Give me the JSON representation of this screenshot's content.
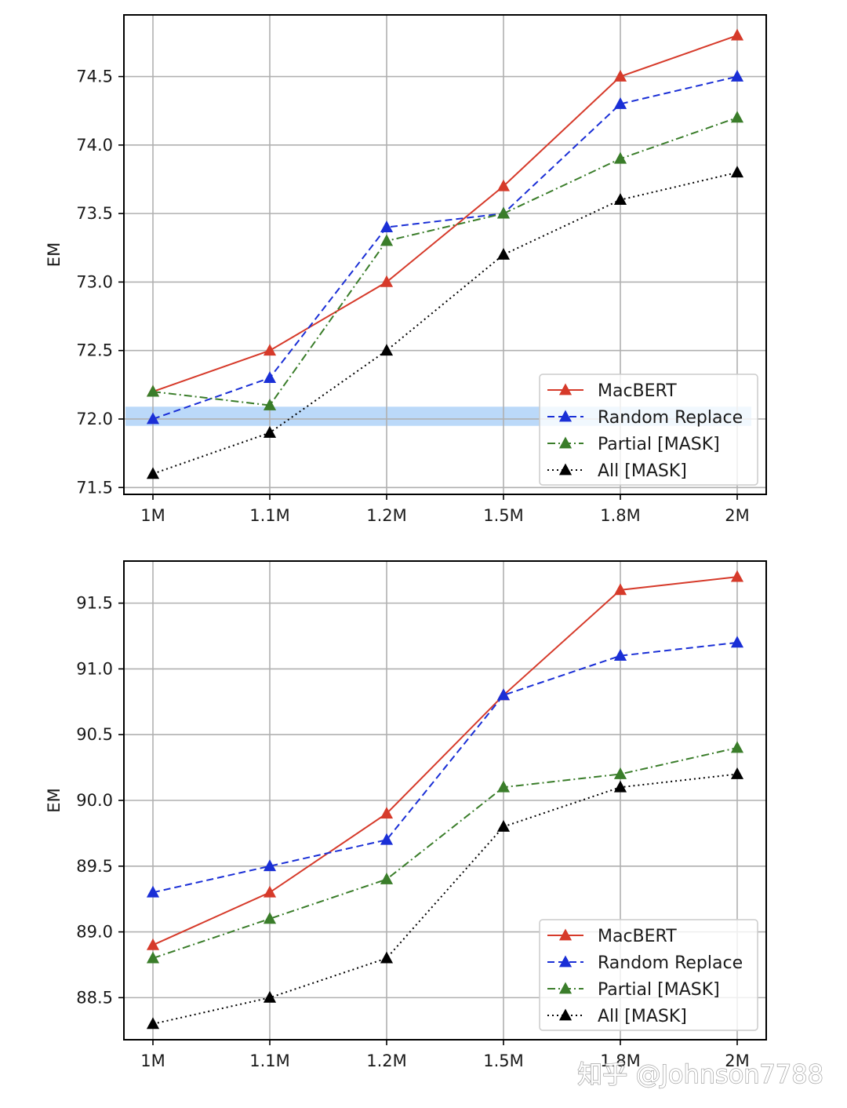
{
  "watermark": "知乎 @Johnson7788",
  "chart_data": [
    {
      "type": "line",
      "title": "",
      "xlabel": "",
      "ylabel": "EM",
      "categories": [
        "1M",
        "1.1M",
        "1.2M",
        "1.5M",
        "1.8M",
        "2M"
      ],
      "ylim": [
        71.45,
        74.95
      ],
      "yticks": [
        71.5,
        72.0,
        72.5,
        73.0,
        73.5,
        74.0,
        74.5
      ],
      "grid": true,
      "legend_position": "lower-right",
      "highlight_band": {
        "from": 71.95,
        "to": 72.09,
        "color": "#8ec0f5"
      },
      "series": [
        {
          "name": "MacBERT",
          "color": "#d63a2a",
          "dash": "solid",
          "values": [
            72.2,
            72.5,
            73.0,
            73.7,
            74.5,
            74.8
          ]
        },
        {
          "name": "Random Replace",
          "color": "#1a2fd6",
          "dash": "dashed",
          "values": [
            72.0,
            72.3,
            73.4,
            73.5,
            74.3,
            74.5
          ]
        },
        {
          "name": "Partial [MASK]",
          "color": "#3a7d2a",
          "dash": "dashdot",
          "values": [
            72.2,
            72.1,
            73.3,
            73.5,
            73.9,
            74.2
          ]
        },
        {
          "name": "All [MASK]",
          "color": "#000000",
          "dash": "dotted",
          "values": [
            71.6,
            71.9,
            72.5,
            73.2,
            73.6,
            73.8
          ]
        }
      ]
    },
    {
      "type": "line",
      "title": "",
      "xlabel": "",
      "ylabel": "EM",
      "categories": [
        "1M",
        "1.1M",
        "1.2M",
        "1.5M",
        "1.8M",
        "2M"
      ],
      "ylim": [
        88.18,
        91.82
      ],
      "yticks": [
        88.5,
        89.0,
        89.5,
        90.0,
        90.5,
        91.0,
        91.5
      ],
      "grid": true,
      "legend_position": "lower-right",
      "series": [
        {
          "name": "MacBERT",
          "color": "#d63a2a",
          "dash": "solid",
          "values": [
            88.9,
            89.3,
            89.9,
            90.8,
            91.6,
            91.7
          ]
        },
        {
          "name": "Random Replace",
          "color": "#1a2fd6",
          "dash": "dashed",
          "values": [
            89.3,
            89.5,
            89.7,
            90.8,
            91.1,
            91.2
          ]
        },
        {
          "name": "Partial [MASK]",
          "color": "#3a7d2a",
          "dash": "dashdot",
          "values": [
            88.8,
            89.1,
            89.4,
            90.1,
            90.2,
            90.4
          ]
        },
        {
          "name": "All [MASK]",
          "color": "#000000",
          "dash": "dotted",
          "values": [
            88.3,
            88.5,
            88.8,
            89.8,
            90.1,
            90.2
          ]
        }
      ]
    }
  ]
}
